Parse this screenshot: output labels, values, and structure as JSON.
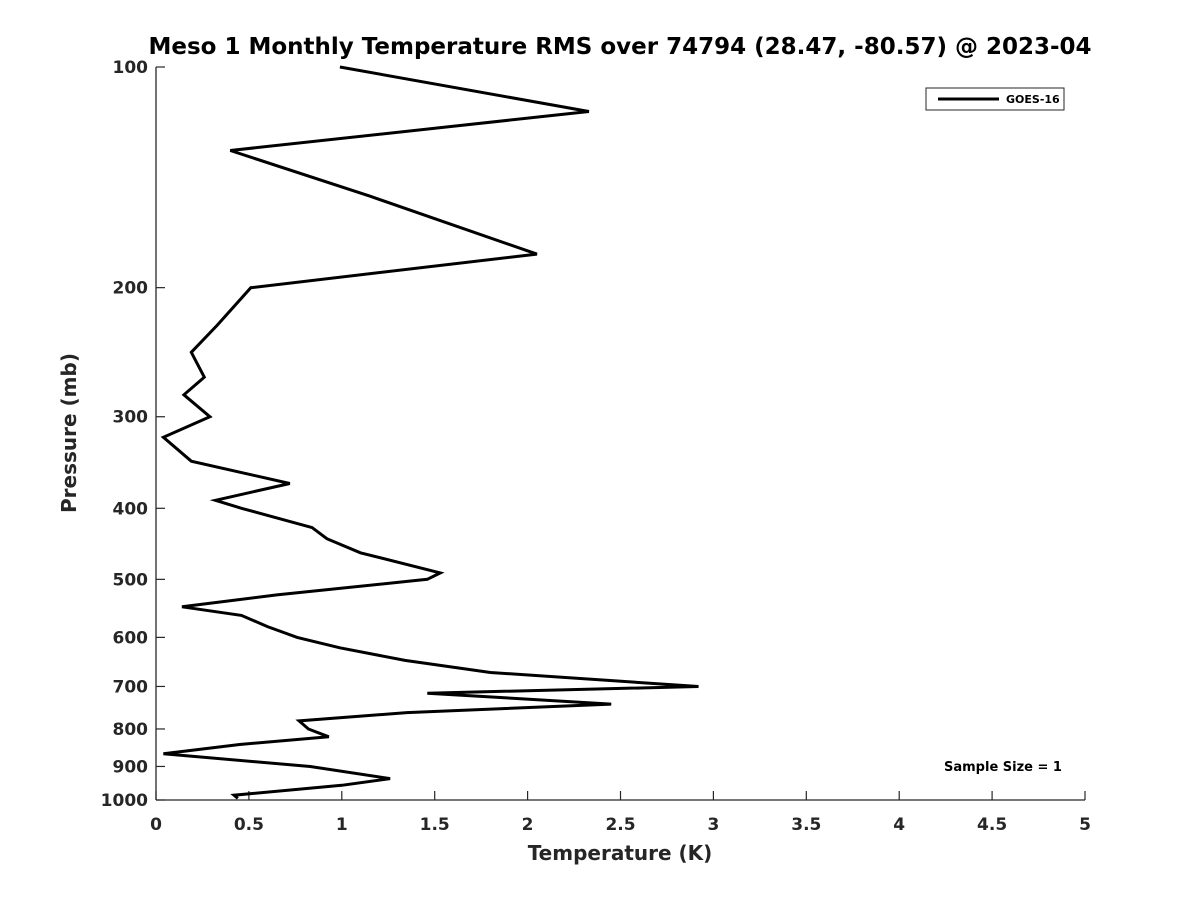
{
  "chart_data": {
    "type": "line",
    "title": "Meso 1 Monthly Temperature RMS over 74794 (28.47, -80.57) @ 2023-04",
    "xlabel": "Temperature (K)",
    "ylabel": "Pressure (mb)",
    "xlim": [
      0,
      5
    ],
    "ylim": [
      100,
      1000
    ],
    "yscale": "log",
    "y_reversed": true,
    "xticks": [
      0,
      0.5,
      1,
      1.5,
      2,
      2.5,
      3,
      3.5,
      4,
      4.5,
      5
    ],
    "xtick_labels": [
      "0",
      "0.5",
      "1",
      "1.5",
      "2",
      "2.5",
      "3",
      "3.5",
      "4",
      "4.5",
      "5"
    ],
    "yticks": [
      100,
      200,
      300,
      400,
      500,
      600,
      700,
      800,
      900,
      1000
    ],
    "ytick_labels": [
      "100",
      "200",
      "300",
      "400",
      "500",
      "600",
      "700",
      "800",
      "900",
      "1000"
    ],
    "grid": false,
    "legend_position": "top-right",
    "series": [
      {
        "name": "GOES-16",
        "color": "#000000",
        "x": [
          0.99,
          2.33,
          0.4,
          1.15,
          2.05,
          0.51,
          0.33,
          0.19,
          0.26,
          0.15,
          0.29,
          0.04,
          0.19,
          0.72,
          0.32,
          0.46,
          0.84,
          0.92,
          1.1,
          1.53,
          1.46,
          0.65,
          0.14,
          0.46,
          0.6,
          0.76,
          0.99,
          1.34,
          1.8,
          2.92,
          1.46,
          2.45,
          1.35,
          0.77,
          0.82,
          0.93,
          0.45,
          0.04,
          0.83,
          1.26,
          1.0,
          0.42,
          0.44
        ],
        "y": [
          100,
          115,
          130,
          150,
          180,
          200,
          225,
          245,
          265,
          280,
          300,
          320,
          345,
          370,
          390,
          400,
          425,
          440,
          460,
          490,
          500,
          525,
          545,
          560,
          580,
          600,
          620,
          645,
          670,
          700,
          715,
          740,
          760,
          780,
          800,
          820,
          840,
          865,
          900,
          935,
          955,
          985,
          995
        ]
      }
    ],
    "annotations": [
      "Sample Size = 1"
    ]
  }
}
